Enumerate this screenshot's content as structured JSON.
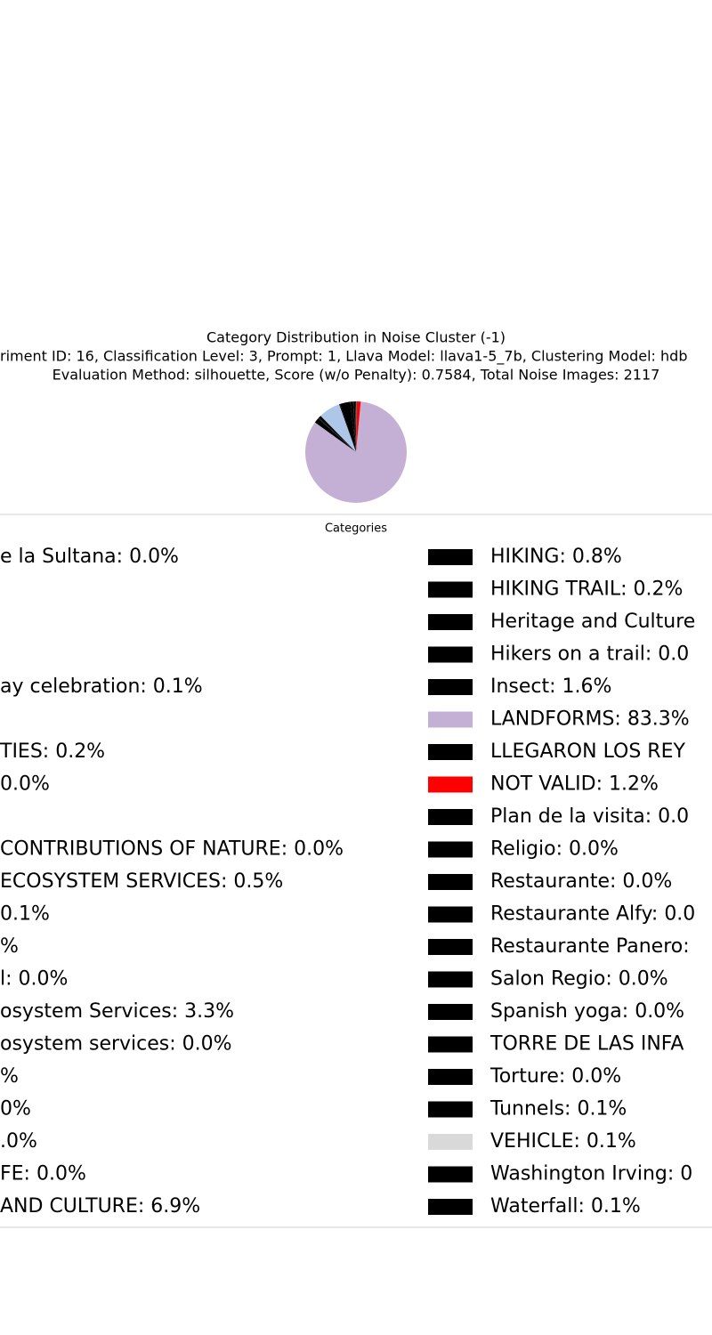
{
  "chart_data": {
    "type": "pie",
    "title": "Category Distribution in Noise Cluster (-1)",
    "subtitle": "riment ID: 16, Classification Level: 3, Prompt: 1, Llava Model: llava1-5_7b, Clustering Model: hdb",
    "subtitle2": "Evaluation Method: silhouette, Score (w/o Penalty): 0.7584, Total Noise Images: 2117",
    "legend_title": "Categories",
    "labels": [
      "e la Sultana: 0.0%",
      null,
      null,
      null,
      "ay celebration: 0.1%",
      null,
      "TIES: 0.2%",
      "0.0%",
      null,
      "CONTRIBUTIONS OF NATURE: 0.0%",
      "ECOSYSTEM SERVICES: 0.5%",
      "0.1%",
      "%",
      "l: 0.0%",
      "osystem Services: 3.3%",
      "osystem services: 0.0%",
      "%",
      "0%",
      ".0%",
      "FE: 0.0%",
      "AND CULTURE: 6.9%",
      "HIKING: 0.8%",
      "HIKING TRAIL: 0.2%",
      "Heritage and Culture",
      "Hikers on a trail: 0.0",
      "Insect: 1.6%",
      "LANDFORMS: 83.3%",
      "LLEGARON LOS REY",
      "NOT VALID: 1.2%",
      "Plan de la visita: 0.0",
      "Religio: 0.0%",
      "Restaurante: 0.0%",
      "Restaurante Alfy: 0.0",
      "Restaurante Panero:",
      "Salon Regio: 0.0%",
      "Spanish yoga: 0.0%",
      "TORRE DE LAS INFA",
      "Torture: 0.0%",
      "Tunnels: 0.1%",
      "VEHICLE: 0.1%",
      "Washington Irving: 0",
      "Waterfall: 0.1%"
    ],
    "values": [
      0.0,
      null,
      null,
      null,
      0.1,
      null,
      0.2,
      0.0,
      null,
      0.0,
      0.5,
      0.1,
      0.9,
      0.0,
      3.3,
      0.0,
      0.3,
      0.0,
      0.0,
      0.0,
      6.9,
      0.8,
      0.2,
      0.1,
      0.0,
      1.6,
      83.3,
      0.0,
      1.2,
      0.0,
      0.0,
      0.0,
      0.0,
      0.0,
      0.0,
      0.0,
      0.0,
      0.0,
      0.1,
      0.1,
      0.0,
      0.1
    ],
    "colors": [
      "#000000",
      "#000000",
      "#000000",
      "#000000",
      "#000000",
      "#000000",
      "#000000",
      "#000000",
      "#000000",
      "#000000",
      "#000000",
      "#000000",
      "#000000",
      "#000000",
      "#000000",
      "#000000",
      "#000000",
      "#000000",
      "#000000",
      "#000000",
      "#aec7e8",
      "#000000",
      "#000000",
      "#000000",
      "#000000",
      "#000000",
      "#c5b0d5",
      "#000000",
      "#ff0000",
      "#000000",
      "#000000",
      "#000000",
      "#000000",
      "#000000",
      "#000000",
      "#000000",
      "#000000",
      "#000000",
      "#000000",
      "#d9d9d9",
      "#000000",
      "#000000"
    ]
  }
}
